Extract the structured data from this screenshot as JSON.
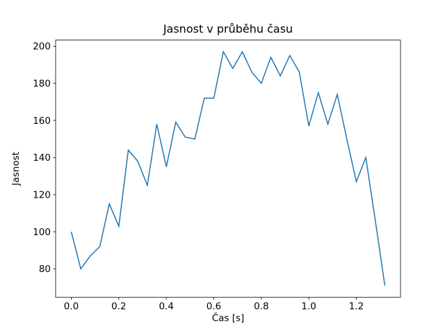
{
  "chart_data": {
    "type": "line",
    "title": "Jasnost v průběhu času",
    "xlabel": "Čas [s]",
    "ylabel": "Jasnost",
    "x": [
      0.0,
      0.04,
      0.08,
      0.12,
      0.16,
      0.2,
      0.24,
      0.28,
      0.32,
      0.36,
      0.4,
      0.44,
      0.48,
      0.52,
      0.56,
      0.6,
      0.64,
      0.68,
      0.72,
      0.76,
      0.8,
      0.84,
      0.88,
      0.92,
      0.96,
      1.0,
      1.04,
      1.08,
      1.12,
      1.16,
      1.2,
      1.24,
      1.28,
      1.32
    ],
    "y": [
      100,
      80,
      87,
      92,
      115,
      103,
      144,
      138,
      125,
      158,
      135,
      159,
      151,
      150,
      172,
      172,
      197,
      188,
      197,
      186,
      180,
      194,
      184,
      195,
      186,
      157,
      175,
      158,
      174,
      150,
      127,
      140,
      106,
      71
    ],
    "xlim": [
      -0.066,
      1.386
    ],
    "ylim": [
      64.7,
      203.3
    ],
    "xticks": [
      0.0,
      0.2,
      0.4,
      0.6,
      0.8,
      1.0,
      1.2
    ],
    "yticks": [
      80,
      100,
      120,
      140,
      160,
      180,
      200
    ],
    "line_color": "#1f77b4",
    "axis_color": "#000000",
    "background_color": "#ffffff",
    "grid": false
  }
}
